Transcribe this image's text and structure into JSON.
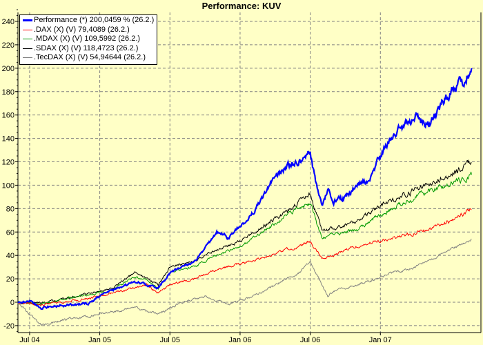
{
  "chart_data": {
    "type": "line",
    "title": "Performance: KUV",
    "xlabel": "",
    "ylabel": "",
    "ylim": [
      -25,
      250
    ],
    "yticks": [
      -20,
      0,
      20,
      40,
      60,
      80,
      100,
      120,
      140,
      160,
      180,
      200,
      220,
      240
    ],
    "x_unit": "months since Jun 2004",
    "xlim": [
      0,
      39.6
    ],
    "xticks": [
      {
        "label": "Jul 04",
        "x": 1
      },
      {
        "label": "Jan 05",
        "x": 7
      },
      {
        "label": "Jul 05",
        "x": 13
      },
      {
        "label": "Jan 06",
        "x": 19
      },
      {
        "label": "Jul 06",
        "x": 25
      },
      {
        "label": "Jan 07",
        "x": 31
      }
    ],
    "grid": true,
    "legend_position": "top-left",
    "series": [
      {
        "name": "Performance (*) 200,0459 % (26.2.)",
        "color": "#0000ff",
        "width": 2.2,
        "points": [
          [
            0,
            0
          ],
          [
            1,
            1
          ],
          [
            1.5,
            -2
          ],
          [
            2,
            -5
          ],
          [
            3,
            -3
          ],
          [
            5,
            -2
          ],
          [
            6,
            -1
          ],
          [
            7,
            5
          ],
          [
            8,
            10
          ],
          [
            9,
            14
          ],
          [
            10,
            18
          ],
          [
            11,
            15
          ],
          [
            12,
            12
          ],
          [
            13,
            25
          ],
          [
            14,
            30
          ],
          [
            15,
            34
          ],
          [
            16,
            45
          ],
          [
            17,
            60
          ],
          [
            18,
            55
          ],
          [
            19,
            65
          ],
          [
            20,
            75
          ],
          [
            21,
            90
          ],
          [
            22,
            108
          ],
          [
            23,
            115
          ],
          [
            24,
            120
          ],
          [
            25,
            128
          ],
          [
            25.5,
            100
          ],
          [
            26,
            80
          ],
          [
            26.5,
            95
          ],
          [
            27,
            85
          ],
          [
            28,
            90
          ],
          [
            29,
            100
          ],
          [
            30,
            105
          ],
          [
            31,
            125
          ],
          [
            32,
            140
          ],
          [
            33,
            150
          ],
          [
            34,
            160
          ],
          [
            35,
            150
          ],
          [
            36,
            165
          ],
          [
            37,
            180
          ],
          [
            38,
            190
          ],
          [
            38.8,
            200
          ]
        ]
      },
      {
        "name": ".DAX (X) (V) 79,4089 (26.2.)",
        "color": "#ff0000",
        "width": 1,
        "points": [
          [
            0,
            0
          ],
          [
            2,
            -2
          ],
          [
            5,
            2
          ],
          [
            7,
            5
          ],
          [
            9,
            10
          ],
          [
            11,
            15
          ],
          [
            12,
            8
          ],
          [
            13,
            15
          ],
          [
            15,
            20
          ],
          [
            17,
            28
          ],
          [
            20,
            35
          ],
          [
            23,
            45
          ],
          [
            24,
            48
          ],
          [
            25,
            52
          ],
          [
            26,
            38
          ],
          [
            27,
            40
          ],
          [
            28,
            45
          ],
          [
            30,
            50
          ],
          [
            33,
            57
          ],
          [
            36,
            65
          ],
          [
            38.8,
            79
          ]
        ]
      },
      {
        "name": ".MDAX (X) (V) 109,5992 (26.2.)",
        "color": "#009900",
        "width": 1,
        "points": [
          [
            0,
            0
          ],
          [
            2,
            -2
          ],
          [
            5,
            5
          ],
          [
            8,
            10
          ],
          [
            10,
            22
          ],
          [
            11,
            18
          ],
          [
            12,
            12
          ],
          [
            13,
            25
          ],
          [
            15,
            30
          ],
          [
            17,
            40
          ],
          [
            19,
            48
          ],
          [
            21,
            60
          ],
          [
            23,
            75
          ],
          [
            25,
            85
          ],
          [
            26,
            55
          ],
          [
            27,
            58
          ],
          [
            29,
            62
          ],
          [
            31,
            75
          ],
          [
            33,
            85
          ],
          [
            35,
            95
          ],
          [
            37,
            100
          ],
          [
            38.8,
            109
          ]
        ]
      },
      {
        "name": ".SDAX (X) (V) 118,4723 (26.2.)",
        "color": "#000000",
        "width": 1,
        "points": [
          [
            0,
            0
          ],
          [
            2,
            -1
          ],
          [
            5,
            5
          ],
          [
            8,
            12
          ],
          [
            10,
            25
          ],
          [
            11,
            20
          ],
          [
            12,
            15
          ],
          [
            13,
            30
          ],
          [
            15,
            35
          ],
          [
            17,
            45
          ],
          [
            19,
            52
          ],
          [
            21,
            65
          ],
          [
            23,
            78
          ],
          [
            25,
            92
          ],
          [
            26,
            62
          ],
          [
            27,
            62
          ],
          [
            29,
            70
          ],
          [
            31,
            82
          ],
          [
            33,
            92
          ],
          [
            35,
            100
          ],
          [
            37,
            110
          ],
          [
            38.8,
            119
          ]
        ]
      },
      {
        "name": ".TecDAX (X) (V) 54,94644 (26.2.)",
        "color": "#808080",
        "width": 1,
        "points": [
          [
            0,
            0
          ],
          [
            1,
            -10
          ],
          [
            2,
            -20
          ],
          [
            4,
            -15
          ],
          [
            6,
            -12
          ],
          [
            8,
            -8
          ],
          [
            10,
            -5
          ],
          [
            11,
            -8
          ],
          [
            12,
            -10
          ],
          [
            13,
            -5
          ],
          [
            14,
            0
          ],
          [
            16,
            5
          ],
          [
            18,
            -2
          ],
          [
            20,
            5
          ],
          [
            22,
            15
          ],
          [
            24,
            25
          ],
          [
            25,
            35
          ],
          [
            25.5,
            25
          ],
          [
            26,
            15
          ],
          [
            26.5,
            5
          ],
          [
            27,
            10
          ],
          [
            28,
            12
          ],
          [
            30,
            18
          ],
          [
            32,
            25
          ],
          [
            34,
            30
          ],
          [
            36,
            40
          ],
          [
            38.8,
            54
          ]
        ]
      }
    ]
  }
}
